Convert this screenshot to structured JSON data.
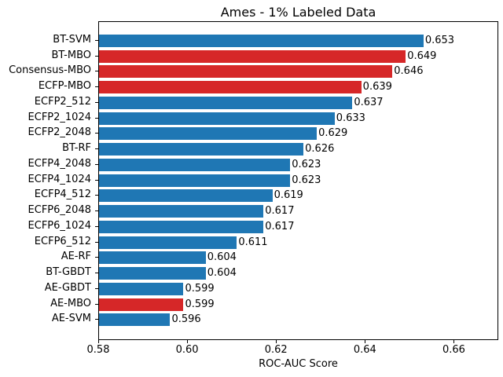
{
  "window": {
    "background": "#ffffff"
  },
  "colors": {
    "blue": "#1f77b4",
    "red": "#d62728",
    "text": "#000000",
    "spine": "#000000"
  },
  "chart_data": {
    "type": "bar",
    "orientation": "horizontal",
    "title": "Ames - 1% Labeled Data",
    "xlabel": "ROC-AUC Score",
    "ylabel": "",
    "grid": false,
    "legend": null,
    "xlim": [
      0.58,
      0.67
    ],
    "xtick_values": [
      0.58,
      0.6,
      0.62,
      0.64,
      0.66
    ],
    "xtick_labels": [
      "0.58",
      "0.60",
      "0.62",
      "0.64",
      "0.66"
    ],
    "categories": [
      "BT-SVM",
      "BT-MBO",
      "Consensus-MBO",
      "ECFP-MBO",
      "ECFP2_512",
      "ECFP2_1024",
      "ECFP2_2048",
      "BT-RF",
      "ECFP4_2048",
      "ECFP4_1024",
      "ECFP4_512",
      "ECFP6_2048",
      "ECFP6_1024",
      "ECFP6_512",
      "AE-RF",
      "BT-GBDT",
      "AE-GBDT",
      "AE-MBO",
      "AE-SVM"
    ],
    "values": [
      0.653,
      0.649,
      0.646,
      0.639,
      0.637,
      0.633,
      0.629,
      0.626,
      0.623,
      0.623,
      0.619,
      0.617,
      0.617,
      0.611,
      0.604,
      0.604,
      0.599,
      0.599,
      0.596
    ],
    "value_labels": [
      "0.653",
      "0.649",
      "0.646",
      "0.639",
      "0.637",
      "0.633",
      "0.629",
      "0.626",
      "0.623",
      "0.623",
      "0.619",
      "0.617",
      "0.617",
      "0.611",
      "0.604",
      "0.604",
      "0.599",
      "0.599",
      "0.596"
    ],
    "bar_colors": [
      "blue",
      "red",
      "red",
      "red",
      "blue",
      "blue",
      "blue",
      "blue",
      "blue",
      "blue",
      "blue",
      "blue",
      "blue",
      "blue",
      "blue",
      "blue",
      "blue",
      "red",
      "blue"
    ]
  }
}
